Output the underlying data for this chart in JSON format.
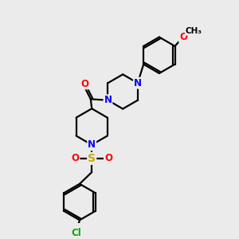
{
  "background_color": "#ebebeb",
  "atom_colors": {
    "N": "#0000ff",
    "O": "#ff0000",
    "S": "#ccaa00",
    "Cl": "#00aa00"
  },
  "bond_color": "#000000",
  "bond_width": 1.6,
  "figsize": [
    3.0,
    3.0
  ],
  "dpi": 100
}
